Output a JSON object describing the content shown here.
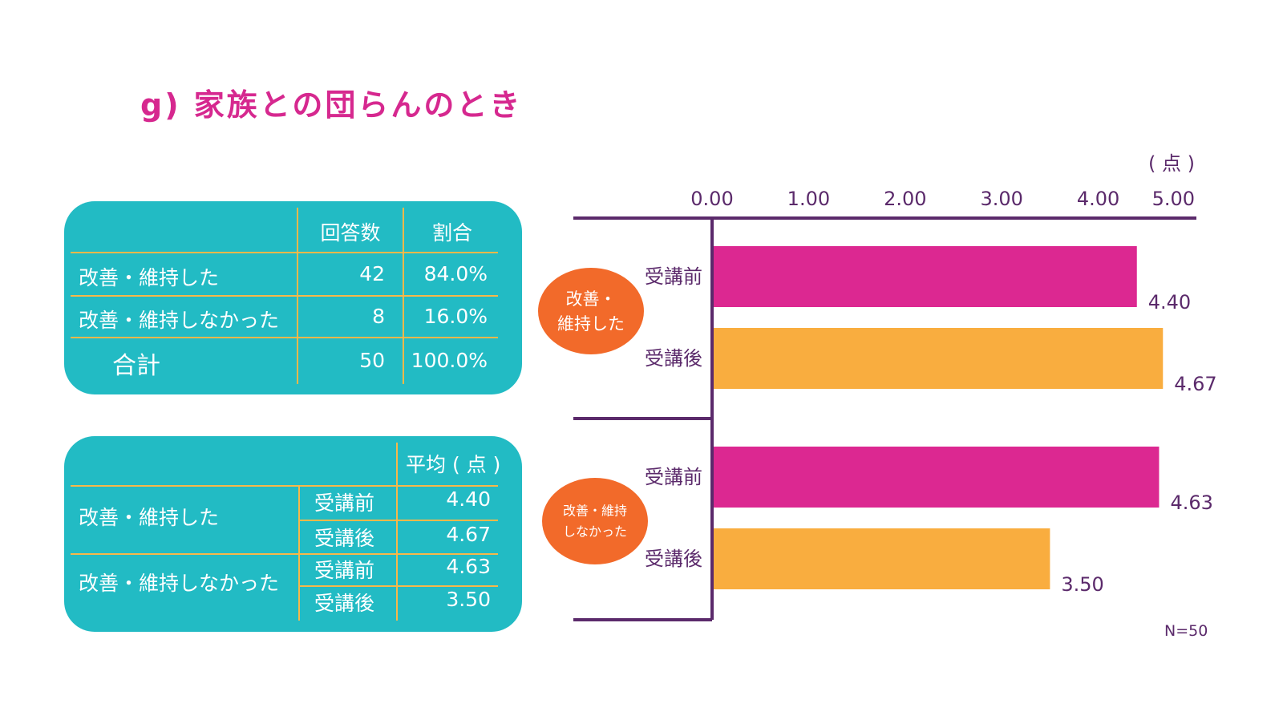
{
  "title": "g) 家族との団らんのとき",
  "table1": {
    "headers": [
      "回答数",
      "割合"
    ],
    "rows": [
      {
        "label": "改善・維持した",
        "count": "42",
        "ratio": "84.0%"
      },
      {
        "label": "改善・維持しなかった",
        "count": "8",
        "ratio": "16.0%"
      },
      {
        "label": "合計",
        "count": "50",
        "ratio": "100.0%"
      }
    ]
  },
  "table2": {
    "header": "平均 ( 点 )",
    "groups": [
      {
        "label": "改善・維持した",
        "rows": [
          {
            "label": "受講前",
            "value": "4.40"
          },
          {
            "label": "受講後",
            "value": "4.67"
          }
        ]
      },
      {
        "label": "改善・維持しなかった",
        "rows": [
          {
            "label": "受講前",
            "value": "4.63"
          },
          {
            "label": "受講後",
            "value": "3.50"
          }
        ]
      }
    ]
  },
  "chart_data": {
    "type": "bar",
    "orientation": "horizontal",
    "unit": "( 点 )",
    "xlim": [
      0,
      5
    ],
    "ticks": [
      "0.00",
      "1.00",
      "2.00",
      "3.00",
      "4.00",
      "5.00"
    ],
    "groups": [
      {
        "label": "改善・\n維持した",
        "bars": [
          {
            "label": "受講前",
            "value": 4.4,
            "value_label": "4.40",
            "color": "#dc2891"
          },
          {
            "label": "受講後",
            "value": 4.67,
            "value_label": "4.67",
            "color": "#f9ad3f"
          }
        ]
      },
      {
        "label": "改善・維持\nしなかった",
        "bars": [
          {
            "label": "受講前",
            "value": 4.63,
            "value_label": "4.63",
            "color": "#dc2891"
          },
          {
            "label": "受講後",
            "value": 3.5,
            "value_label": "3.50",
            "color": "#f9ad3f"
          }
        ]
      }
    ],
    "group_badge_color": "#f26a2a",
    "axis_color": "#5b2a6b",
    "grid": false,
    "legend": "none"
  },
  "footnote": "N=50"
}
